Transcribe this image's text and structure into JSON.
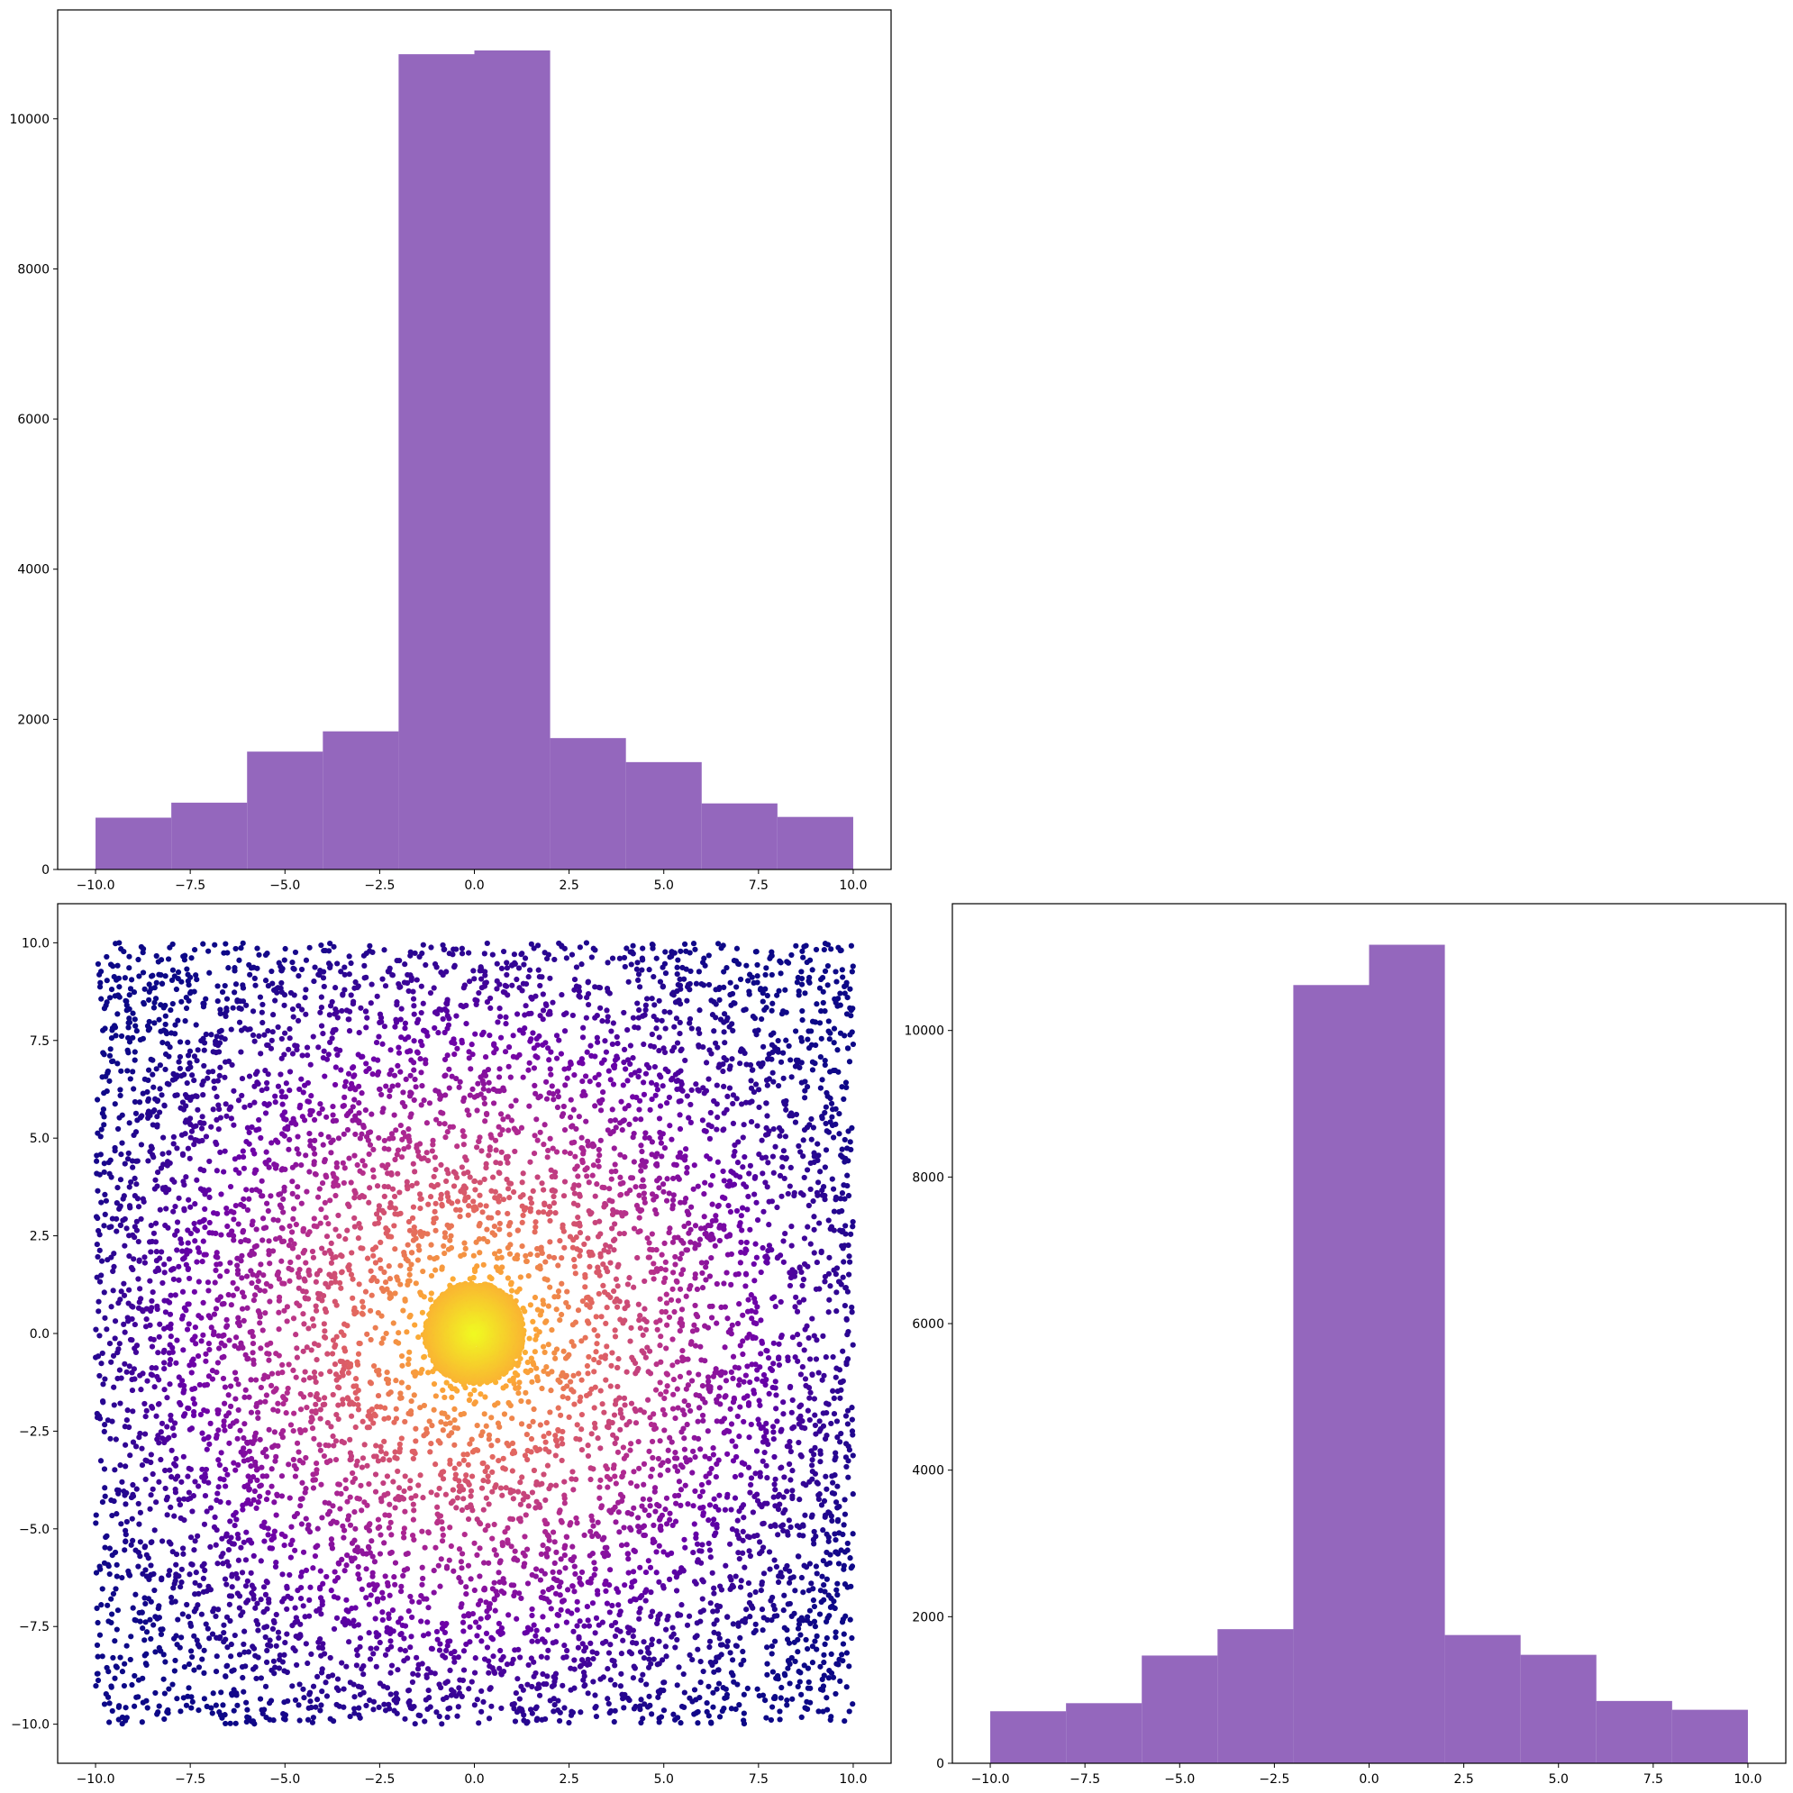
{
  "figure": {
    "layout": "2x2 corner plot",
    "empty_panel": "top-right"
  },
  "chart_data": [
    {
      "panel": "top-left",
      "type": "bar",
      "subtype": "histogram",
      "title": "",
      "xlabel": "",
      "ylabel": "",
      "bin_edges": [
        -10,
        -8,
        -6,
        -4,
        -2,
        0,
        2,
        4,
        6,
        8,
        10
      ],
      "values": [
        690,
        890,
        1570,
        1840,
        10860,
        10910,
        1750,
        1430,
        880,
        700
      ],
      "color": "#9467bd",
      "xlim": [
        -11,
        11
      ],
      "ylim": [
        0,
        11450
      ],
      "xticks": [
        -10.0,
        -7.5,
        -5.0,
        -2.5,
        0.0,
        2.5,
        5.0,
        7.5,
        10.0
      ],
      "xtick_labels": [
        "−10.0",
        "−7.5",
        "−5.0",
        "−2.5",
        "0.0",
        "2.5",
        "5.0",
        "7.5",
        "10.0"
      ],
      "yticks": [
        0,
        2000,
        4000,
        6000,
        8000,
        10000
      ],
      "ytick_labels": [
        "0",
        "2000",
        "4000",
        "6000",
        "8000",
        "10000"
      ],
      "grid": false,
      "legend": "none"
    },
    {
      "panel": "bottom-left",
      "type": "scatter",
      "title": "",
      "xlabel": "",
      "ylabel": "",
      "x_range": [
        -10,
        10
      ],
      "y_range": [
        -10,
        10
      ],
      "approx_points": 10000,
      "point_pattern": "uniform square with a dense central cluster of radius ~1.3 at (0, 0)",
      "color_encoding": "distance from origin, colormap plasma (center yellow, edges dark blue)",
      "colormap": [
        "#0d0887",
        "#6a00a8",
        "#b12a90",
        "#e16462",
        "#fca636",
        "#f0f921"
      ],
      "xlim": [
        -11,
        11
      ],
      "ylim": [
        -11,
        11
      ],
      "xticks": [
        -10.0,
        -7.5,
        -5.0,
        -2.5,
        0.0,
        2.5,
        5.0,
        7.5,
        10.0
      ],
      "xtick_labels": [
        "−10.0",
        "−7.5",
        "−5.0",
        "−2.5",
        "0.0",
        "2.5",
        "5.0",
        "7.5",
        "10.0"
      ],
      "yticks": [
        -10.0,
        -7.5,
        -5.0,
        -2.5,
        0.0,
        2.5,
        5.0,
        7.5,
        10.0
      ],
      "ytick_labels": [
        "−10.0",
        "−7.5",
        "−5.0",
        "−2.5",
        "0.0",
        "2.5",
        "5.0",
        "7.5",
        "10.0"
      ],
      "grid": false,
      "legend": "none"
    },
    {
      "panel": "bottom-right",
      "type": "bar",
      "subtype": "histogram",
      "title": "",
      "xlabel": "",
      "ylabel": "",
      "bin_edges": [
        -10,
        -8,
        -6,
        -4,
        -2,
        0,
        2,
        4,
        6,
        8,
        10
      ],
      "values": [
        710,
        820,
        1470,
        1830,
        10620,
        11170,
        1750,
        1480,
        850,
        730
      ],
      "color": "#9467bd",
      "xlim": [
        -11,
        11
      ],
      "ylim": [
        0,
        11730
      ],
      "xticks": [
        -10.0,
        -7.5,
        -5.0,
        -2.5,
        0.0,
        2.5,
        5.0,
        7.5,
        10.0
      ],
      "xtick_labels": [
        "−10.0",
        "−7.5",
        "−5.0",
        "−2.5",
        "0.0",
        "2.5",
        "5.0",
        "7.5",
        "10.0"
      ],
      "yticks": [
        0,
        2000,
        4000,
        6000,
        8000,
        10000
      ],
      "ytick_labels": [
        "0",
        "2000",
        "4000",
        "6000",
        "8000",
        "10000"
      ],
      "grid": false,
      "legend": "none"
    }
  ]
}
